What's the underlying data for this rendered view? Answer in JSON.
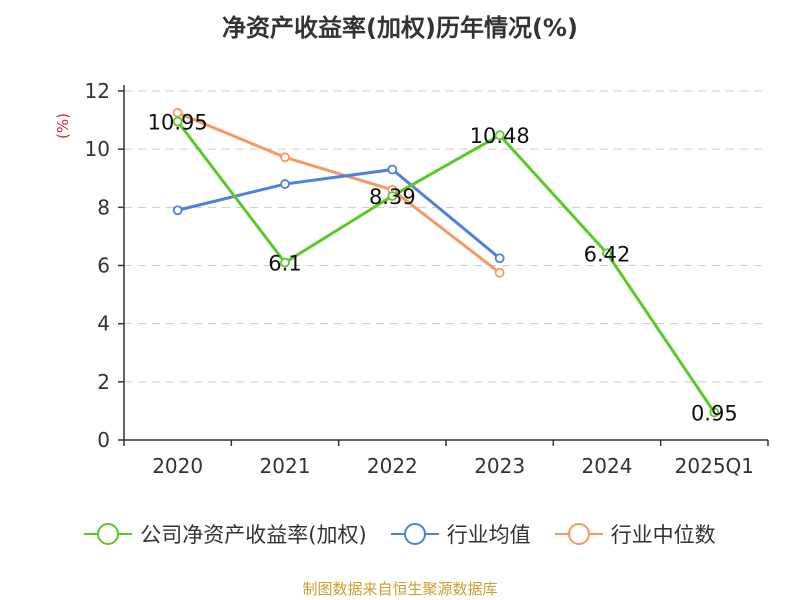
{
  "chart_data": {
    "type": "line",
    "title": "净资产收益率(加权)历年情况(%)",
    "ylabel": "(%)",
    "xlabel": "",
    "categories": [
      "2020",
      "2021",
      "2022",
      "2023",
      "2024",
      "2025Q1"
    ],
    "ylim": [
      0,
      12
    ],
    "yticks": [
      0,
      2,
      4,
      6,
      8,
      10,
      12
    ],
    "grid": true,
    "legend_position": "bottom",
    "series": [
      {
        "name": "公司净资产收益率(加权)",
        "color": "#5ec829",
        "values": [
          10.95,
          6.1,
          8.39,
          10.48,
          6.42,
          0.95
        ],
        "labels": [
          "10.95",
          "6.1",
          "8.39",
          "10.48",
          "6.42",
          "0.95"
        ]
      },
      {
        "name": "行业均值",
        "color": "#4f7fdf",
        "values": [
          7.9,
          8.8,
          9.3,
          6.25,
          null,
          null
        ]
      },
      {
        "name": "行业中位数",
        "color": "#f59a66",
        "values": [
          11.25,
          9.72,
          8.6,
          5.75,
          null,
          null
        ]
      }
    ],
    "source": "制图数据来自恒生聚源数据库"
  }
}
